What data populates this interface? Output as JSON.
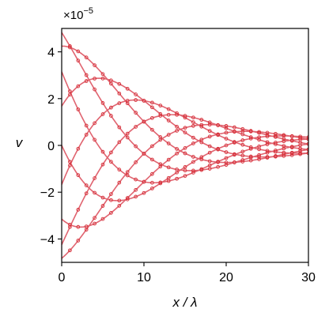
{
  "chart_data": {
    "type": "line",
    "title": "",
    "xlabel": "x / λ",
    "ylabel": "v",
    "y_multiplier_label": "×10",
    "y_multiplier_exponent": "−5",
    "xlim": [
      0,
      30
    ],
    "ylim": [
      -5,
      5
    ],
    "x_ticks": [
      0,
      10,
      20,
      30
    ],
    "x_tick_labels": [
      "0",
      "10",
      "20",
      "30"
    ],
    "y_ticks": [
      -4,
      -2,
      0,
      2,
      4
    ],
    "y_tick_labels": [
      "−4",
      "−2",
      "0",
      "2",
      "4"
    ],
    "grid": false,
    "legend": "none",
    "line_color": "#e06470",
    "marker_color": "#d62d36",
    "marker_style": "open-circle",
    "envelope": {
      "amplitude_at_x0": 4.9,
      "amplitude_at_x30": 0.35
    },
    "series": [
      {
        "phase_deg": 90
      },
      {
        "phase_deg": 50
      },
      {
        "phase_deg": 10
      },
      {
        "phase_deg": -30
      },
      {
        "phase_deg": -70
      },
      {
        "phase_deg": -110
      },
      {
        "phase_deg": -150
      },
      {
        "phase_deg": 170
      },
      {
        "phase_deg": 130
      }
    ],
    "marker_x_spacing": 1
  }
}
